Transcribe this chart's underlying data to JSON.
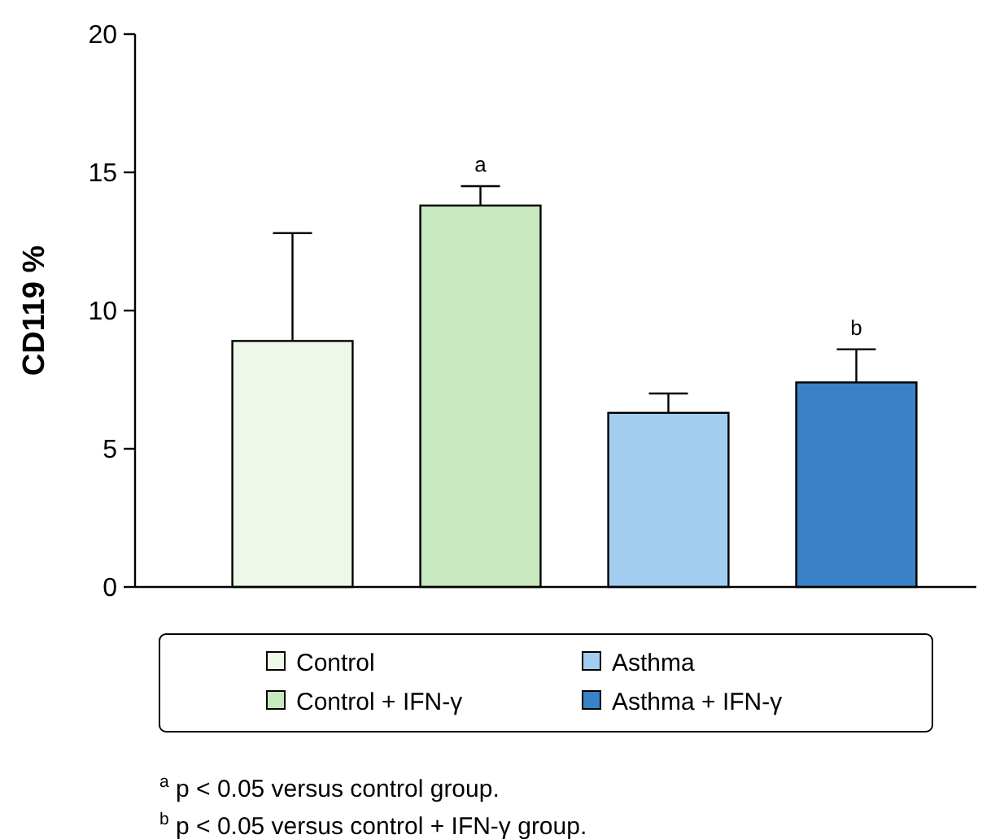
{
  "chart_data": {
    "type": "bar",
    "ylabel": "CD119 %",
    "categories": [
      null,
      null,
      null,
      null
    ],
    "series": [
      {
        "name": "Control",
        "color": "#eef8e8",
        "values": [
          8.9,
          null,
          null,
          null
        ],
        "errors": [
          [
            8.9,
            12.8
          ],
          null,
          null,
          null
        ]
      },
      {
        "name": "Control + IFN-γ",
        "color": "#c8e8bf",
        "values": [
          null,
          13.8,
          null,
          null
        ],
        "errors": [
          null,
          [
            13.8,
            14.5
          ],
          null,
          null
        ],
        "value_labels": [
          null,
          "a",
          null,
          null
        ]
      },
      {
        "name": "Asthma",
        "color": "#a3cdf0",
        "values": [
          null,
          null,
          6.3,
          null
        ],
        "errors": [
          null,
          null,
          [
            6.3,
            7.0
          ],
          null
        ]
      },
      {
        "name": "Asthma + IFN-γ",
        "color": "#3a82c8",
        "values": [
          null,
          null,
          null,
          7.4
        ],
        "errors": [
          null,
          null,
          null,
          [
            7.4,
            8.6
          ]
        ],
        "value_labels": [
          null,
          null,
          null,
          "b"
        ]
      }
    ],
    "ylim": [
      0,
      20
    ],
    "yticks": [
      0,
      5,
      10,
      15,
      20
    ],
    "legend": "bottom",
    "annotations": [
      "$^{a}$ p < 0.05 versus control group.",
      "$^{b}$ p < 0.05 versus control + IFN-γ group."
    ]
  }
}
